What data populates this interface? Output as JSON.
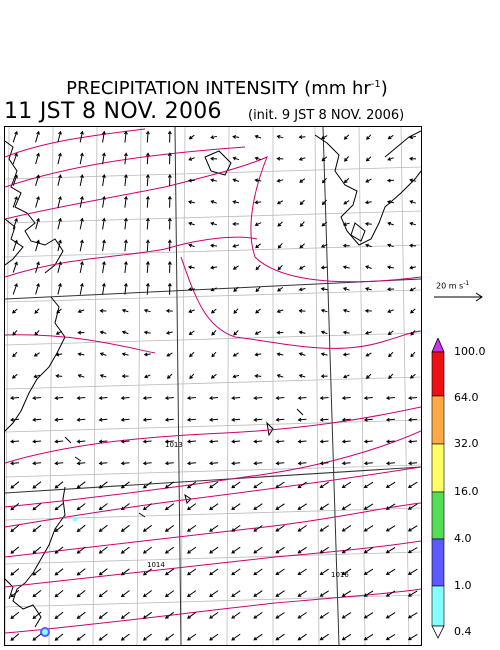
{
  "header": {
    "title": "PRECIPITATION INTENSITY (mm hr",
    "title_sup": "-1",
    "title_close": ")",
    "valid_time": "11 JST 8 NOV. 2006",
    "init_time": "(init. 9 JST 8 NOV. 2006)"
  },
  "wind_reference": {
    "label": "20 m s",
    "label_sup": "-1"
  },
  "isobar_labels": [
    "1013",
    "1014",
    "1016"
  ],
  "colorbar": {
    "levels": [
      "0.4",
      "1.0",
      "4.0",
      "16.0",
      "32.0",
      "64.0",
      "100.0"
    ],
    "colors": [
      "#88ffff",
      "#5a5aff",
      "#55dd55",
      "#ffff66",
      "#ffaa44",
      "#ee1111",
      "#cc33ee"
    ],
    "above_color": "#cc33ee",
    "below_color": "#ffffff"
  }
}
